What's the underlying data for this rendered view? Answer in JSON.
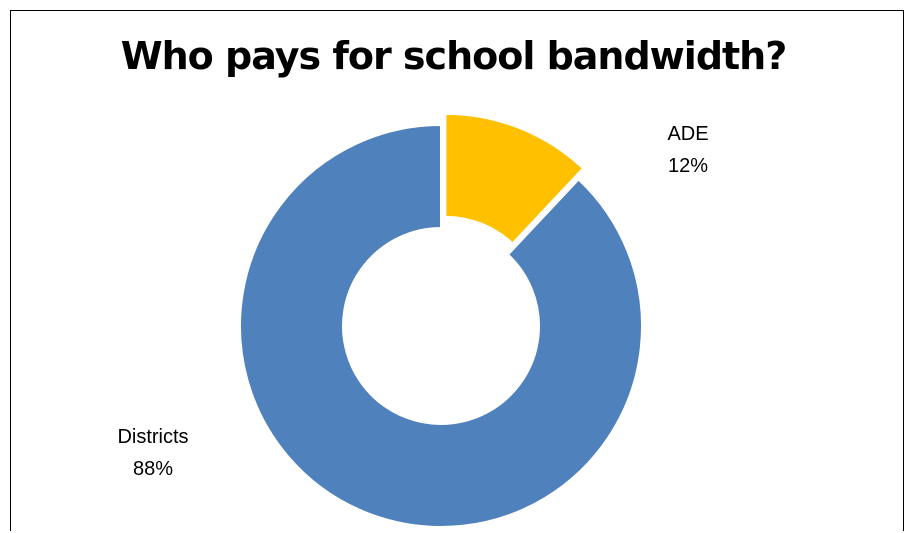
{
  "chart_data": {
    "type": "pie",
    "variant": "doughnut",
    "title": "Who pays for school bandwidth?",
    "slices": [
      {
        "label": "ADE",
        "value": 12,
        "display": "12%",
        "color": "#FFC000",
        "exploded": true
      },
      {
        "label": "Districts",
        "value": 88,
        "display": "88%",
        "color": "#4F81BD",
        "exploded": false
      }
    ],
    "legend": "none"
  }
}
